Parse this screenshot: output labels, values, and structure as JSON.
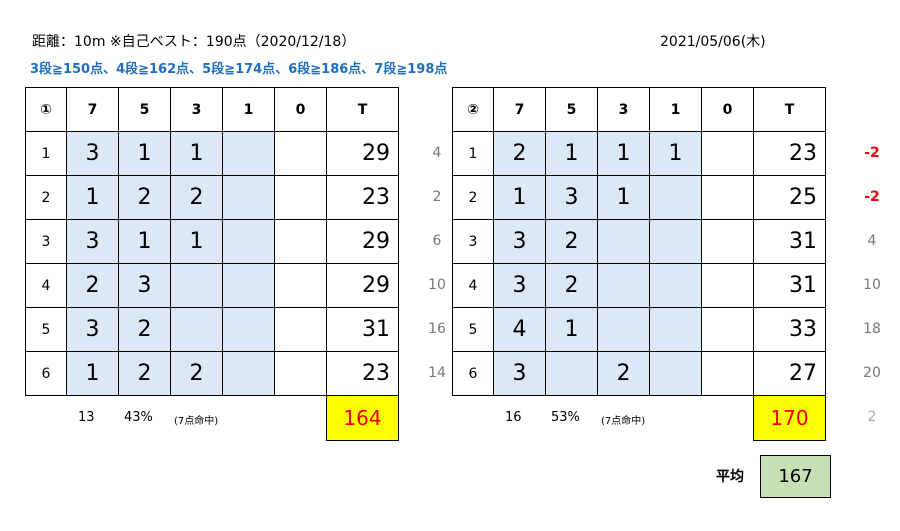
{
  "header": {
    "note": "距離：10m ※自己ベスト：190点（2020/12/18）",
    "date": "2021/05/06(木)",
    "grades": "3段≧150点、4段≧162点、5段≧174点、6段≧186点、7段≧198点"
  },
  "tables": [
    {
      "header": [
        "①",
        7,
        5,
        3,
        1,
        0,
        "T"
      ],
      "rows": [
        [
          1,
          3,
          1,
          1,
          null,
          null,
          29
        ],
        [
          2,
          1,
          2,
          2,
          null,
          null,
          23
        ],
        [
          3,
          3,
          1,
          1,
          null,
          null,
          29
        ],
        [
          4,
          2,
          3,
          null,
          null,
          null,
          29
        ],
        [
          5,
          3,
          2,
          null,
          null,
          null,
          31
        ],
        [
          6,
          1,
          2,
          2,
          null,
          null,
          23
        ]
      ],
      "hits": 13,
      "rate": "43%",
      "rate_note": "(7点命中)",
      "total": 164
    },
    {
      "header": [
        "②",
        7,
        5,
        3,
        1,
        0,
        "T"
      ],
      "rows": [
        [
          1,
          2,
          1,
          1,
          1,
          null,
          23
        ],
        [
          2,
          1,
          3,
          1,
          null,
          null,
          25
        ],
        [
          3,
          3,
          2,
          null,
          null,
          null,
          31
        ],
        [
          4,
          3,
          2,
          null,
          null,
          null,
          31
        ],
        [
          5,
          4,
          1,
          null,
          null,
          null,
          33
        ],
        [
          6,
          3,
          null,
          2,
          null,
          null,
          27
        ]
      ],
      "hits": 16,
      "rate": "53%",
      "rate_note": "(7点命中)",
      "total": 170,
      "left_notes": [
        4,
        2,
        6,
        10,
        16,
        14
      ],
      "right_notes": [
        -2,
        -2,
        4,
        10,
        18,
        20
      ],
      "total_note": 2
    }
  ],
  "average": {
    "label": "平均",
    "value": 167
  }
}
